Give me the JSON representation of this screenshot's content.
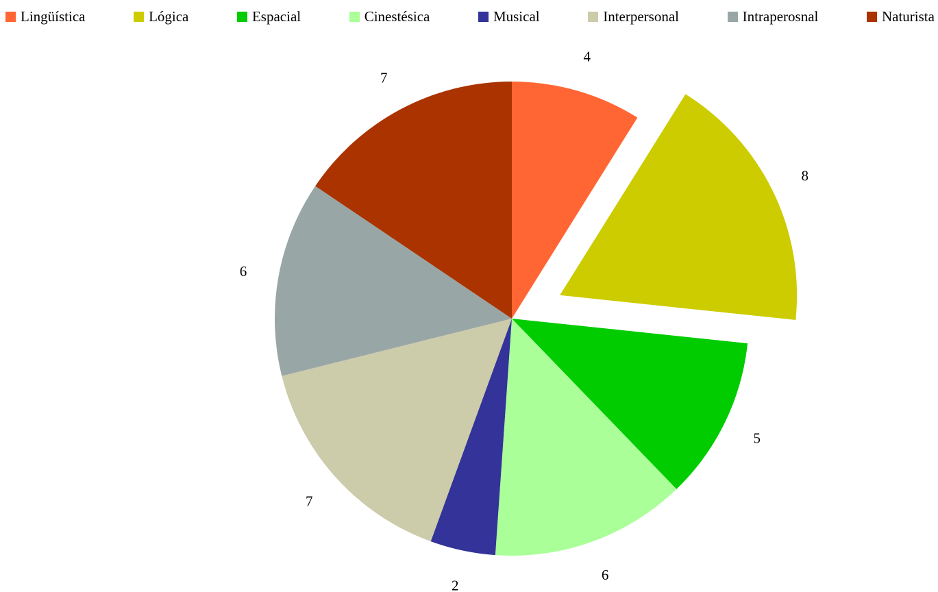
{
  "chart_data": {
    "type": "pie",
    "title": "",
    "categories": [
      "Lingüística",
      "Lógica",
      "Espacial",
      "Cinestésica",
      "Musical",
      "Interpersonal",
      "Intraperosnal",
      "Naturista"
    ],
    "values": [
      4,
      8,
      5,
      6,
      2,
      7,
      6,
      7
    ],
    "colors": [
      "#ff6633",
      "#cccc00",
      "#00cc00",
      "#aaff99",
      "#333399",
      "#cccbaa",
      "#99a6a6",
      "#aa3300"
    ],
    "exploded": [
      "Lógica"
    ],
    "legend": "top",
    "start_angle": "12 o'clock",
    "direction": "clockwise"
  }
}
